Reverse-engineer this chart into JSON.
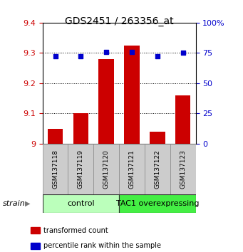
{
  "title": "GDS2451 / 263356_at",
  "samples": [
    "GSM137118",
    "GSM137119",
    "GSM137120",
    "GSM137121",
    "GSM137122",
    "GSM137123"
  ],
  "red_values": [
    9.05,
    9.1,
    9.28,
    9.325,
    9.04,
    9.16
  ],
  "blue_percentiles": [
    72,
    72,
    76,
    76,
    72,
    75
  ],
  "ylim_left": [
    9.0,
    9.4
  ],
  "ylim_right": [
    0,
    100
  ],
  "yticks_left": [
    9.0,
    9.1,
    9.2,
    9.3,
    9.4
  ],
  "ytick_labels_left": [
    "9",
    "9.1",
    "9.2",
    "9.3",
    "9.4"
  ],
  "yticks_right": [
    0,
    25,
    50,
    75,
    100
  ],
  "ytick_labels_right": [
    "0",
    "25",
    "50",
    "75",
    "100%"
  ],
  "group1_label": "control",
  "group1_color": "#bbffbb",
  "group2_label": "TAC1 overexpressing",
  "group2_color": "#44ee44",
  "bar_color": "#cc0000",
  "dot_color": "#0000cc",
  "left_tick_color": "#cc0000",
  "right_tick_color": "#0000cc",
  "legend_red_label": "transformed count",
  "legend_blue_label": "percentile rank within the sample",
  "strain_label": "strain",
  "bar_width": 0.6,
  "dot_size": 25,
  "sample_box_color": "#cccccc",
  "sample_box_edge": "#888888"
}
